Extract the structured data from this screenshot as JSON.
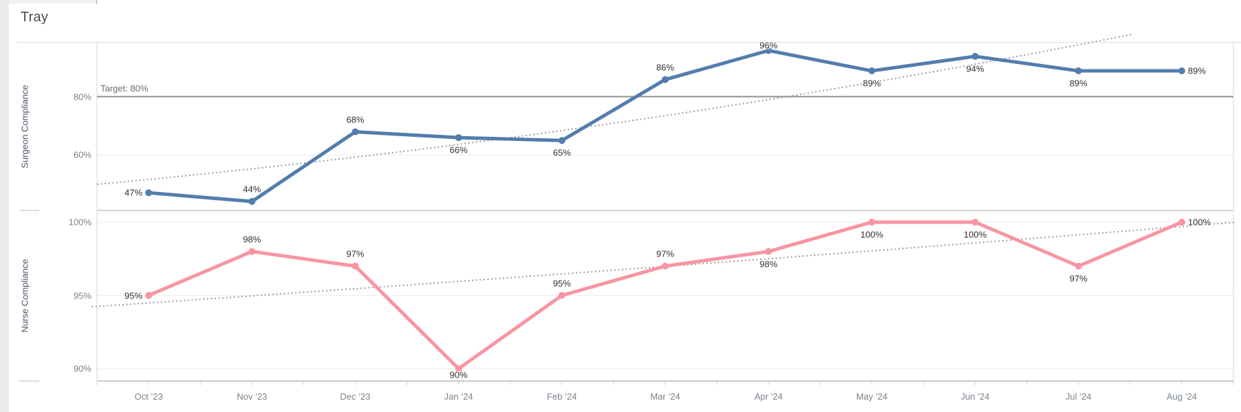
{
  "page": {
    "title": "Tray"
  },
  "chart_data": {
    "type": "line",
    "title": "Tray",
    "categories": [
      "Oct ’23",
      "Nov ’23",
      "Dec ’23",
      "Jan ’24",
      "Feb ’24",
      "Mar ’24",
      "Apr ’24",
      "May ’24",
      "Jun ’24",
      "Jul ’24",
      "Aug ’24"
    ],
    "series": [
      {
        "name": "Surgeon Compliance",
        "pane": 0,
        "color": "#527dad",
        "values": [
          47,
          44,
          68,
          66,
          65,
          86,
          96,
          89,
          94,
          89,
          89
        ],
        "data_labels": [
          "47%",
          "44%",
          "68%",
          "66%",
          "65%",
          "86%",
          "96%",
          "89%",
          "94%",
          "89%",
          "89%"
        ],
        "label_positions": [
          "left",
          "above",
          "above",
          "below",
          "below",
          "above",
          "above-tight",
          "below",
          "below",
          "below",
          "right"
        ],
        "trendline": "linear-dotted"
      },
      {
        "name": "Nurse Compliance",
        "pane": 1,
        "color": "#f895a2",
        "values": [
          95,
          98,
          97,
          90,
          95,
          97,
          98,
          100,
          100,
          97,
          100
        ],
        "data_labels": [
          "95%",
          "98%",
          "97%",
          "90%",
          "95%",
          "97%",
          "98%",
          "100%",
          "100%",
          "97%",
          "100%"
        ],
        "label_positions": [
          "left",
          "above",
          "above",
          "below-tight",
          "above",
          "above",
          "below",
          "below",
          "below",
          "below",
          "right"
        ],
        "trendline": "linear-dotted"
      }
    ],
    "panes": [
      {
        "ylabel": "Surgeon Compliance",
        "yticks": [
          {
            "label": "80%",
            "value": 80
          },
          {
            "label": "60%",
            "value": 60
          }
        ],
        "ylim": [
          42,
          99
        ],
        "target": {
          "label": "Target: 80%",
          "value": 80
        }
      },
      {
        "ylabel": "Nurse Compliance",
        "yticks": [
          {
            "label": "100%",
            "value": 100
          },
          {
            "label": "95%",
            "value": 95
          },
          {
            "label": "90%",
            "value": 90
          }
        ],
        "ylim": [
          89,
          101
        ]
      }
    ],
    "legend": "none",
    "grid": true,
    "colors": {
      "surgeon_line": "#527dad",
      "nurse_line": "#f895a2",
      "target_line": "#8f8f8f",
      "trend_line": "#9b9b9b",
      "gridline": "#ededed",
      "pane_border": "#d7d7d7",
      "axis_line": "#b9b9b9"
    }
  }
}
